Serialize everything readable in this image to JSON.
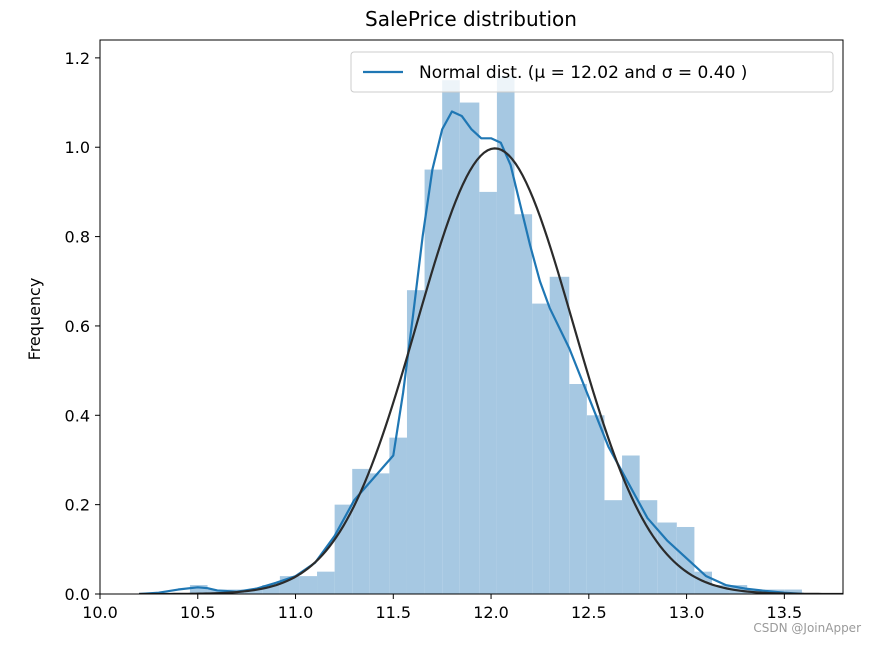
{
  "chart_data": {
    "type": "bar",
    "title": "SalePrice distribution",
    "xlabel": "",
    "ylabel": "Frequency",
    "xlim": [
      10.0,
      13.8
    ],
    "ylim": [
      0.0,
      1.24
    ],
    "xticks": [
      "10.0",
      "10.5",
      "11.0",
      "11.5",
      "12.0",
      "12.5",
      "13.0",
      "13.5"
    ],
    "yticks": [
      "0.0",
      "0.2",
      "0.4",
      "0.6",
      "0.8",
      "1.0",
      "1.2"
    ],
    "grid": false,
    "legend": {
      "placement": "top-right",
      "label": "Normal dist. (μ =  12.02 and σ =  0.40 )"
    },
    "colors": {
      "histogram": "#a6c8e2",
      "kde": "#1f77b4",
      "normal_fit": "#2b2b2b"
    },
    "histogram": {
      "bin_edges": [
        10.46,
        10.55,
        10.65,
        10.74,
        10.83,
        10.92,
        11.02,
        11.11,
        11.2,
        11.29,
        11.38,
        11.48,
        11.57,
        11.66,
        11.75,
        11.84,
        11.94,
        12.03,
        12.12,
        12.21,
        12.3,
        12.4,
        12.49,
        12.58,
        12.67,
        12.76,
        12.85,
        12.95,
        13.04,
        13.13,
        13.22,
        13.31,
        13.41,
        13.5,
        13.59
      ],
      "values": [
        0.02,
        0.01,
        0.01,
        0.01,
        0.02,
        0.04,
        0.04,
        0.05,
        0.2,
        0.28,
        0.27,
        0.35,
        0.68,
        0.95,
        1.15,
        1.1,
        0.9,
        1.16,
        0.85,
        0.65,
        0.71,
        0.47,
        0.4,
        0.21,
        0.31,
        0.21,
        0.16,
        0.15,
        0.05,
        0.02,
        0.02,
        0.01,
        0.01,
        0.01
      ]
    },
    "kde": {
      "name": "",
      "x": [
        10.2,
        10.3,
        10.4,
        10.5,
        10.55,
        10.6,
        10.7,
        10.8,
        10.9,
        11.0,
        11.1,
        11.2,
        11.3,
        11.4,
        11.5,
        11.55,
        11.6,
        11.65,
        11.7,
        11.75,
        11.8,
        11.85,
        11.9,
        11.95,
        12.0,
        12.05,
        12.1,
        12.15,
        12.2,
        12.25,
        12.3,
        12.4,
        12.5,
        12.6,
        12.7,
        12.8,
        12.9,
        13.0,
        13.1,
        13.2,
        13.3,
        13.4,
        13.5,
        13.6
      ],
      "y": [
        0.0,
        0.003,
        0.01,
        0.015,
        0.013,
        0.008,
        0.005,
        0.012,
        0.025,
        0.04,
        0.07,
        0.13,
        0.21,
        0.26,
        0.31,
        0.45,
        0.62,
        0.8,
        0.95,
        1.04,
        1.08,
        1.07,
        1.04,
        1.02,
        1.02,
        1.01,
        0.96,
        0.87,
        0.78,
        0.7,
        0.64,
        0.55,
        0.44,
        0.33,
        0.25,
        0.17,
        0.12,
        0.08,
        0.04,
        0.02,
        0.012,
        0.007,
        0.003,
        0.0
      ]
    },
    "normal_fit": {
      "mu": 12.02,
      "sigma": 0.4,
      "range": [
        10.2,
        13.8
      ]
    }
  },
  "watermark": "CSDN @JoinApper"
}
